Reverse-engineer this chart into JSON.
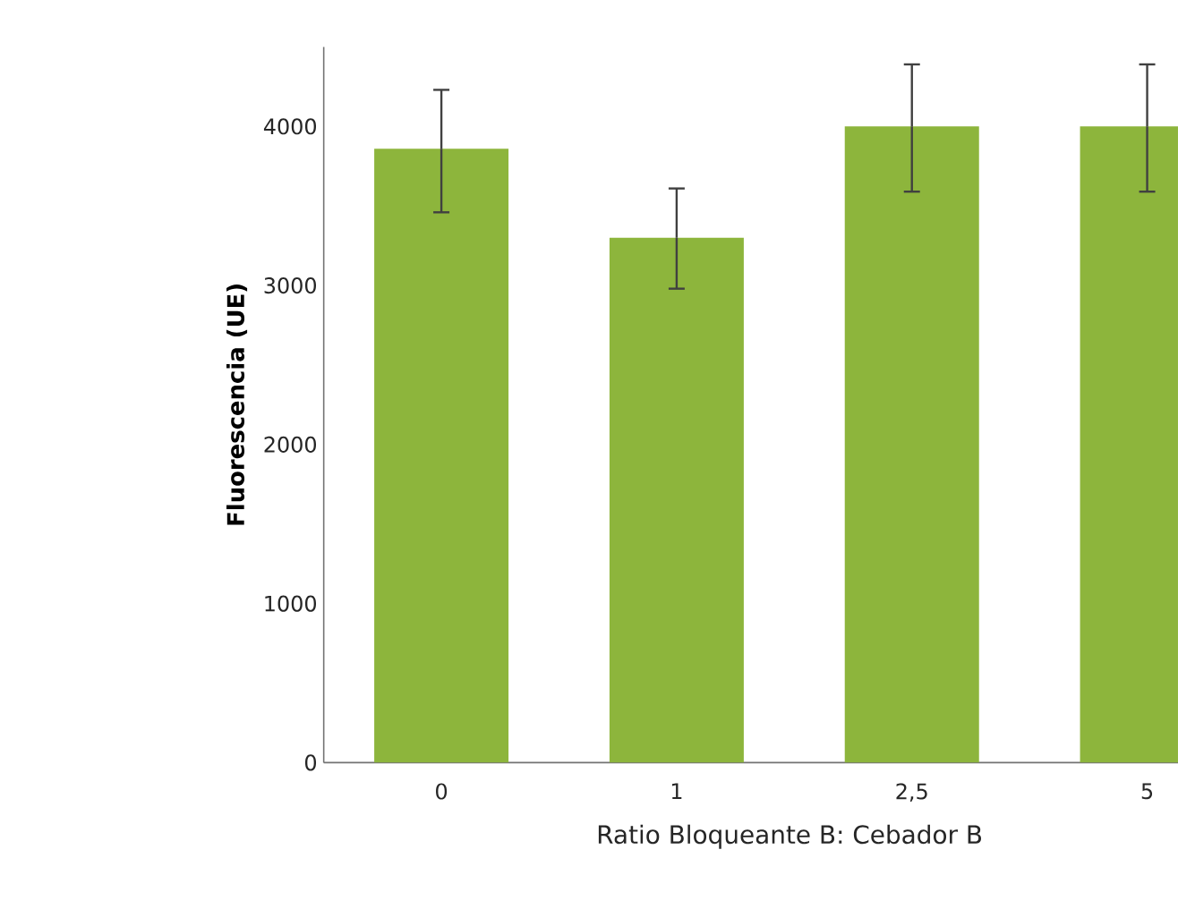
{
  "chart_data": {
    "type": "bar",
    "xlabel": "Ratio Bloqueante B: Cebador B",
    "ylabel": "Fluorescencia (UE)",
    "categories": [
      "0",
      "1",
      "2,5",
      "5"
    ],
    "values": [
      3860,
      3300,
      4000,
      4000
    ],
    "errors": [
      [
        3460,
        4230
      ],
      [
        2980,
        3610
      ],
      [
        3590,
        4390
      ],
      [
        3590,
        4390
      ]
    ],
    "color": "#8db53c",
    "ylim": [
      0,
      4500
    ],
    "yticks": [
      0,
      1000,
      2000,
      3000,
      4000
    ],
    "grid": false
  }
}
